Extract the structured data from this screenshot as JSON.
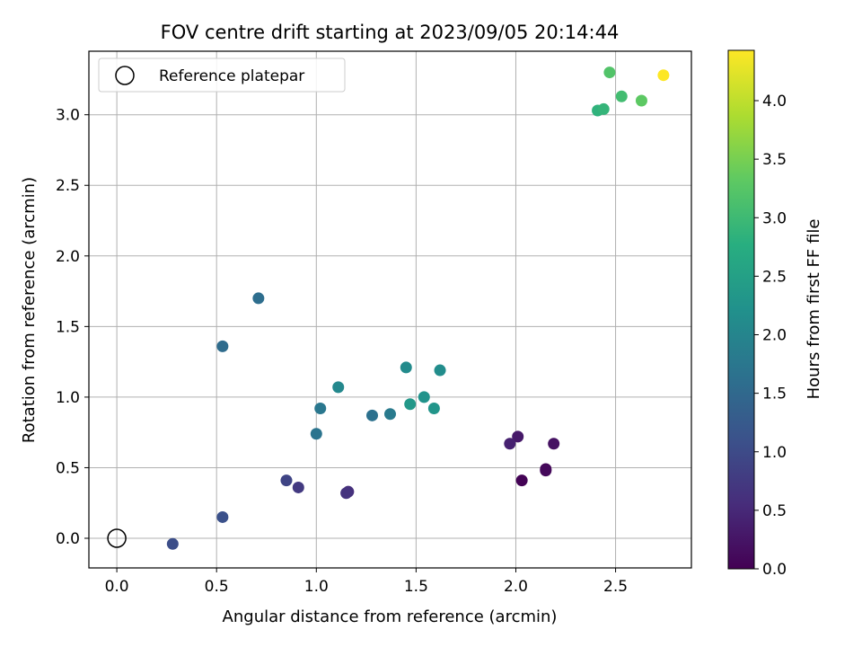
{
  "chart_data": {
    "type": "scatter",
    "title": "FOV centre drift starting at 2023/09/05 20:14:44",
    "xlabel": "Angular distance from reference (arcmin)",
    "ylabel": "Rotation from reference (arcmin)",
    "xlim": [
      -0.14,
      2.88
    ],
    "ylim": [
      -0.21,
      3.45
    ],
    "xticks": [
      0.0,
      0.5,
      1.0,
      1.5,
      2.0,
      2.5
    ],
    "yticks": [
      0.0,
      0.5,
      1.0,
      1.5,
      2.0,
      2.5,
      3.0
    ],
    "xtick_labels": [
      "0.0",
      "0.5",
      "1.0",
      "1.5",
      "2.0",
      "2.5"
    ],
    "ytick_labels": [
      "0.0",
      "0.5",
      "1.0",
      "1.5",
      "2.0",
      "2.5",
      "3.0"
    ],
    "grid": true,
    "legend": {
      "placement": "top-left",
      "entries": [
        "Reference platepar"
      ]
    },
    "reference_point": {
      "x": 0.0,
      "y": 0.0
    },
    "colorbar": {
      "label": "Hours from first FF file",
      "colormap": "viridis",
      "range": [
        0.0,
        4.43
      ],
      "ticks": [
        0.0,
        0.5,
        1.0,
        1.5,
        2.0,
        2.5,
        3.0,
        3.5,
        4.0
      ],
      "tick_labels": [
        "0.0",
        "0.5",
        "1.0",
        "1.5",
        "2.0",
        "2.5",
        "3.0",
        "3.5",
        "4.0"
      ]
    },
    "points": [
      {
        "x": 2.03,
        "y": 0.41,
        "hours": 0.02
      },
      {
        "x": 2.15,
        "y": 0.49,
        "hours": 0.05
      },
      {
        "x": 2.15,
        "y": 0.48,
        "hours": 0.1
      },
      {
        "x": 2.19,
        "y": 0.67,
        "hours": 0.2
      },
      {
        "x": 2.01,
        "y": 0.72,
        "hours": 0.3
      },
      {
        "x": 1.97,
        "y": 0.67,
        "hours": 0.4
      },
      {
        "x": 1.16,
        "y": 0.33,
        "hours": 0.6
      },
      {
        "x": 1.15,
        "y": 0.32,
        "hours": 0.65
      },
      {
        "x": 0.91,
        "y": 0.36,
        "hours": 0.75
      },
      {
        "x": 0.85,
        "y": 0.41,
        "hours": 0.9
      },
      {
        "x": 0.28,
        "y": -0.04,
        "hours": 1.05
      },
      {
        "x": 0.53,
        "y": 0.15,
        "hours": 1.1
      },
      {
        "x": 0.53,
        "y": 1.36,
        "hours": 1.55
      },
      {
        "x": 0.71,
        "y": 1.7,
        "hours": 1.6
      },
      {
        "x": 1.0,
        "y": 0.74,
        "hours": 1.7
      },
      {
        "x": 1.02,
        "y": 0.92,
        "hours": 1.75
      },
      {
        "x": 1.28,
        "y": 0.87,
        "hours": 1.65
      },
      {
        "x": 1.37,
        "y": 0.88,
        "hours": 1.8
      },
      {
        "x": 1.11,
        "y": 1.07,
        "hours": 2.05
      },
      {
        "x": 1.45,
        "y": 1.21,
        "hours": 2.1
      },
      {
        "x": 1.62,
        "y": 1.19,
        "hours": 2.15
      },
      {
        "x": 1.54,
        "y": 1.0,
        "hours": 2.25
      },
      {
        "x": 1.47,
        "y": 0.95,
        "hours": 2.35
      },
      {
        "x": 1.59,
        "y": 0.92,
        "hours": 2.3
      },
      {
        "x": 2.41,
        "y": 3.03,
        "hours": 2.85
      },
      {
        "x": 2.44,
        "y": 3.04,
        "hours": 2.9
      },
      {
        "x": 2.53,
        "y": 3.13,
        "hours": 3.05
      },
      {
        "x": 2.47,
        "y": 3.3,
        "hours": 3.2
      },
      {
        "x": 2.63,
        "y": 3.1,
        "hours": 3.3
      },
      {
        "x": 2.74,
        "y": 3.28,
        "hours": 4.43
      }
    ]
  }
}
